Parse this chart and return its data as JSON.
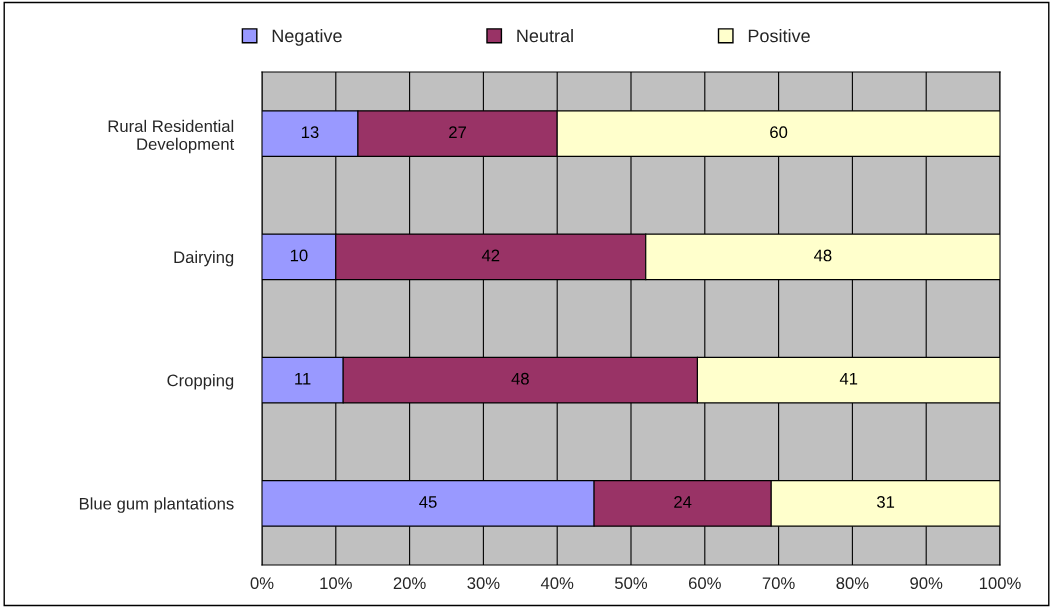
{
  "chart_data": {
    "type": "bar",
    "orientation": "horizontal",
    "stacked": true,
    "categories": [
      "Rural Residential\nDevelopment",
      "Dairying",
      "Cropping",
      "Blue gum plantations"
    ],
    "series": [
      {
        "name": "Negative",
        "color": "#9999ff",
        "values": [
          13,
          10,
          11,
          45
        ]
      },
      {
        "name": "Neutral",
        "color": "#993366",
        "values": [
          27,
          42,
          48,
          24
        ]
      },
      {
        "name": "Positive",
        "color": "#ffffcc",
        "values": [
          60,
          48,
          41,
          31
        ]
      }
    ],
    "xlim": [
      0,
      100
    ],
    "xticks": [
      {
        "value": 0,
        "label": "0%"
      },
      {
        "value": 10,
        "label": "10%"
      },
      {
        "value": 20,
        "label": "20%"
      },
      {
        "value": 30,
        "label": "30%"
      },
      {
        "value": 40,
        "label": "40%"
      },
      {
        "value": 50,
        "label": "50%"
      },
      {
        "value": 60,
        "label": "60%"
      },
      {
        "value": 70,
        "label": "70%"
      },
      {
        "value": 80,
        "label": "80%"
      },
      {
        "value": 90,
        "label": "90%"
      },
      {
        "value": 100,
        "label": "100%"
      }
    ],
    "data_labels": true,
    "grid": "x",
    "legend": "top"
  }
}
